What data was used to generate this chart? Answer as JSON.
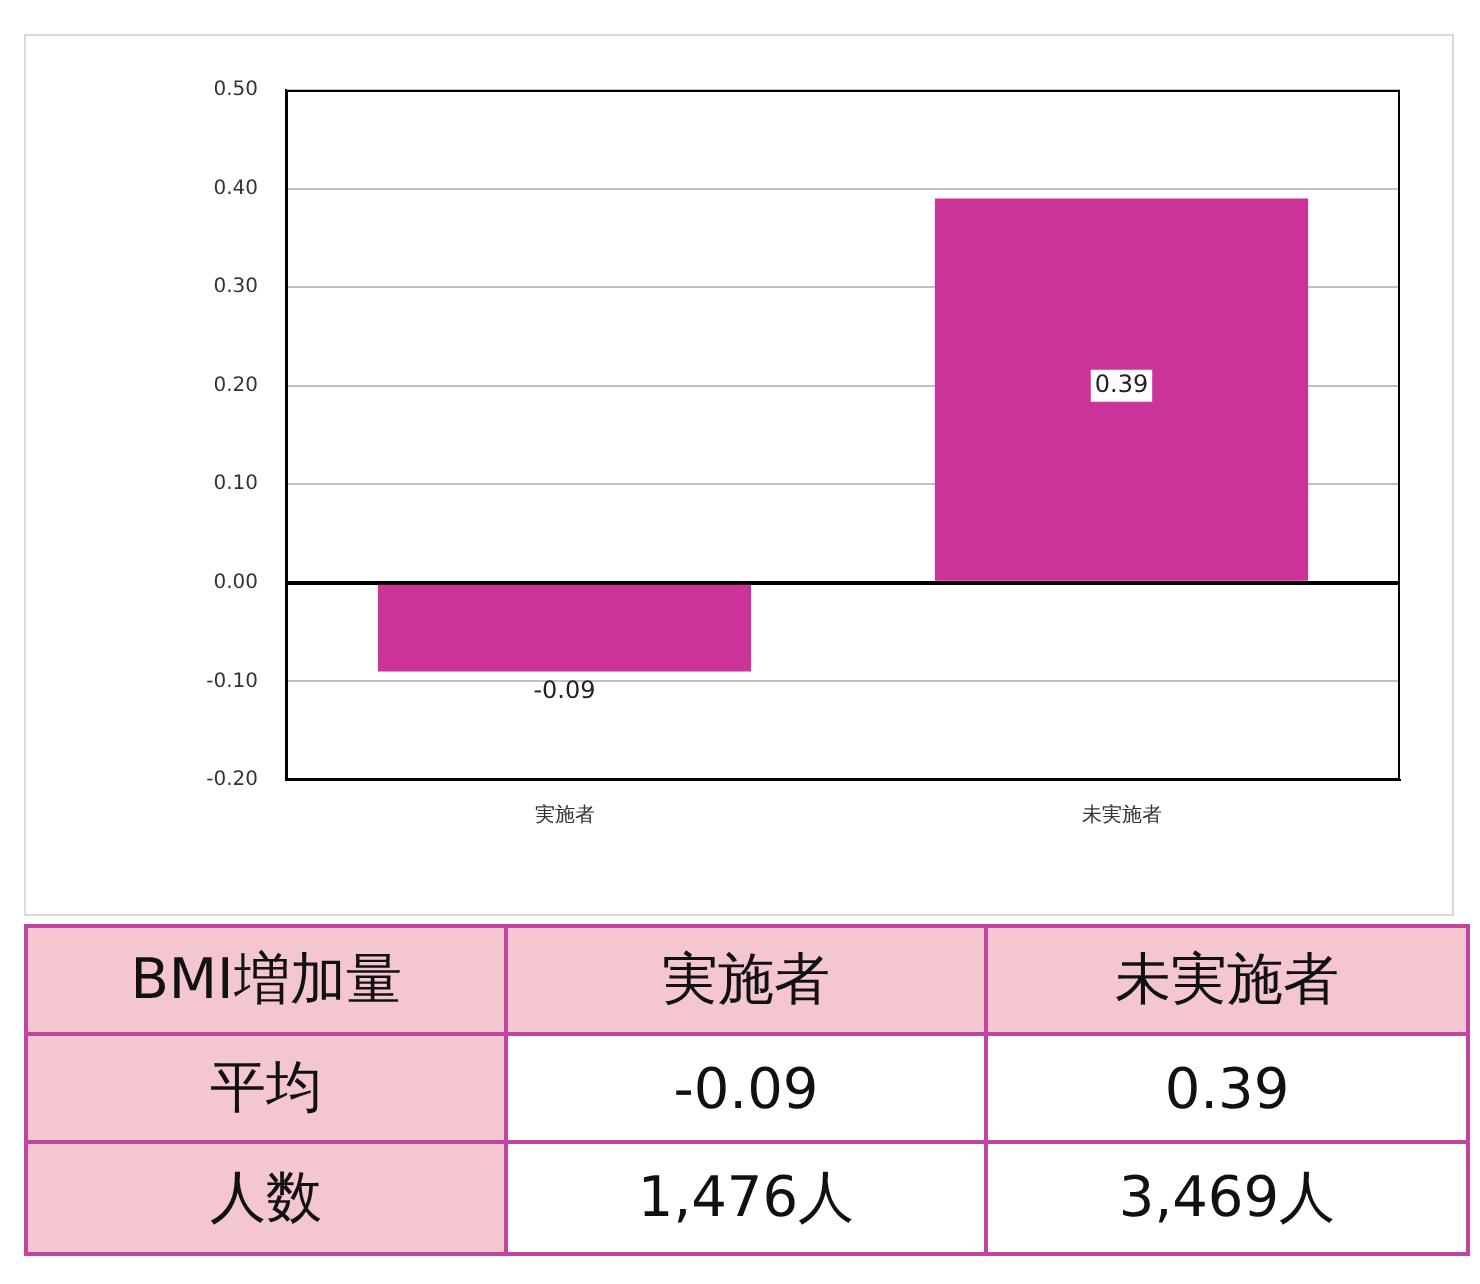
{
  "chart_data": {
    "type": "bar",
    "categories": [
      "実施者",
      "未実施者"
    ],
    "values": [
      -0.09,
      0.39
    ],
    "color": "#cc3399",
    "ylim": [
      -0.2,
      0.5
    ],
    "yticks": [
      {
        "value": -0.2,
        "label": "-0.20"
      },
      {
        "value": -0.1,
        "label": "-0.10"
      },
      {
        "value": 0,
        "label": "0.00"
      },
      {
        "value": 0.1,
        "label": "0.10"
      },
      {
        "value": 0.2,
        "label": "0.20"
      },
      {
        "value": 0.3,
        "label": "0.30"
      },
      {
        "value": 0.4,
        "label": "0.40"
      },
      {
        "value": 0.5,
        "label": "0.50"
      }
    ],
    "grid": "y",
    "data_labels": true,
    "annotations": [
      "BMI増加量",
      "平均",
      "人数",
      "1,476人",
      "3,469人",
      {
        "text": "-0.09",
        "x": "実施者",
        "y": -0.09
      },
      {
        "text": "0.39",
        "x": "未実施者",
        "y": 0.2
      }
    ]
  }
}
